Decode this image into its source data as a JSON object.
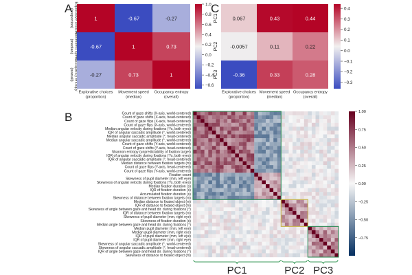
{
  "panels": {
    "A": {
      "letter": "A",
      "row_labels": [
        "Explorative choices (proportion)",
        "Movement speed (median)",
        "Occupancy entropy (overall)"
      ],
      "col_labels": [
        "Explorative choices (proportion)",
        "Movement speed (median)",
        "Occupancy entropy (overall)"
      ],
      "values": [
        [
          1,
          -0.67,
          -0.27
        ],
        [
          -0.67,
          1,
          0.73
        ],
        [
          -0.27,
          0.73,
          1
        ]
      ],
      "value_labels": [
        [
          "1",
          "-0.67",
          "-0.27"
        ],
        [
          "-0.67",
          "1",
          "0.73"
        ],
        [
          "-0.27",
          "0.73",
          "1"
        ]
      ],
      "colorbar": {
        "min": -0.67,
        "max": 1.0,
        "ticks": [
          1.0,
          0.8,
          0.6,
          0.4,
          0.2,
          0.0,
          -0.2,
          -0.4,
          -0.6
        ],
        "tick_labels": [
          "1.0",
          "0.8",
          "0.6",
          "0.4",
          "0.2",
          "0.0",
          "−0.2",
          "−0.4",
          "−0.6"
        ]
      }
    },
    "C": {
      "letter": "C",
      "row_labels": [
        "PC1",
        "PC2",
        "PC3"
      ],
      "col_labels": [
        "Explorative choices (proportion)",
        "Movement speed (median)",
        "Occupancy entropy (overall)"
      ],
      "values": [
        [
          0.067,
          0.43,
          0.44
        ],
        [
          -0.0057,
          0.11,
          0.22
        ],
        [
          -0.36,
          0.33,
          0.28
        ]
      ],
      "value_labels": [
        [
          "0.067",
          "0.43",
          "0.44"
        ],
        [
          "-0.0057",
          "0.11",
          "0.22"
        ],
        [
          "-0.36",
          "0.33",
          "0.28"
        ]
      ],
      "colorbar": {
        "min": -0.36,
        "max": 0.44,
        "ticks": [
          0.4,
          0.3,
          0.2,
          0.1,
          0.0,
          -0.1,
          -0.2,
          -0.3
        ],
        "tick_labels": [
          "0.4",
          "0.3",
          "0.2",
          "0.1",
          "0.0",
          "−0.1",
          "−0.2",
          "−0.3"
        ]
      }
    },
    "B": {
      "letter": "B",
      "row_labels": [
        "Count of gaze shifts (X-axis, world-centered)",
        "Count of gaze shifts (X-axis, head-centered)",
        "Count of gaze flips (X-axis, head-centered)",
        "Count of gaze flips (X-axis, world-centered)",
        "Median angular velocity during fixations (°/s, both eyes)",
        "IQR of angular saccadic amplitude (°, world-centered)",
        "Median angular saccadic amplitude (°, head-centered)",
        "Median angular saccadic amplitude (°, world-centered)",
        "Count of gaze shifts (Y-axis, world-centered)",
        "Count of gaze shifts (Y-axis, head-centered)",
        "Shannon entropy (unpredictability of fixation target)",
        "IQR of angular velocity during fixations (°/s, both eyes)",
        "IQR of angular saccadic amplitude (°, head-centered)",
        "Median distance between fixation targets (m)",
        "Count of gaze flips (Y-axis, head-centered)",
        "Count of gaze flips (Y-axis, world-centered)",
        "Fixation count",
        "Skewness of pupil diameter (mm, left eye)",
        "Skewness of angular velocity during fixations (°/s, both eyes)",
        "Median fixation duration (s)",
        "IQR of fixation duration (s)",
        "Accumulated fixation duration (s)",
        "Skewness of distance between fixation targets (m)",
        "Median distance to fixated object (m)",
        "IQR of distance to fixated object (m)",
        "Skewness of angle between gaze and head dir. during fixations (°)",
        "IQR of distance between fixation targets (m)",
        "Skewness of pupil diameter (mm, right eye)",
        "Skewness of fixation duration (s)",
        "Median angle between gaze and head dir. during fixations (°)",
        "Median pupil diameter (mm, left eye)",
        "Median pupil diameter (mm, right eye)",
        "IQR of pupil diameter (mm, left eye)",
        "IQR of pupil diameter (mm, right eye)",
        "Skewness of angular saccadic amplitude (°, world-centered)",
        "Skewness of angular saccadic amplitude (°, head-centered)",
        "IQR of angle between gaze and head dir. during fixations (°)",
        "Skewness of distance to fixated object (m)"
      ],
      "groups": [
        {
          "label": "PC1",
          "start": 0,
          "end": 23
        },
        {
          "label": "PC2",
          "start": 23,
          "end": 30
        },
        {
          "label": "PC3",
          "start": 30,
          "end": 38
        }
      ],
      "colorbar": {
        "min": -1.0,
        "max": 1.0,
        "ticks": [
          1.0,
          0.75,
          0.5,
          0.25,
          0.0,
          -0.25,
          -0.5,
          -0.75
        ],
        "tick_labels": [
          "1.00",
          "0.75",
          "0.50",
          "0.25",
          "0.00",
          "−0.25",
          "−0.50",
          "−0.75"
        ]
      }
    }
  },
  "colors": {
    "neg": "#3b4cc0",
    "mid": "#f2f0ef",
    "pos": "#b40426",
    "b_neg": "#053061",
    "b_pos": "#67001f",
    "box": "#2e8b57",
    "box_pc2": "#c7b64a",
    "text": "#222222"
  },
  "chart_data": [
    {
      "type": "heatmap",
      "title": "A",
      "x": [
        "Explorative choices (proportion)",
        "Movement speed (median)",
        "Occupancy entropy (overall)"
      ],
      "y": [
        "Explorative choices (proportion)",
        "Movement speed (median)",
        "Occupancy entropy (overall)"
      ],
      "values": [
        [
          1,
          -0.67,
          -0.27
        ],
        [
          -0.67,
          1,
          0.73
        ],
        [
          -0.27,
          0.73,
          1
        ]
      ]
    },
    {
      "type": "heatmap",
      "title": "C",
      "x": [
        "Explorative choices (proportion)",
        "Movement speed (median)",
        "Occupancy entropy (overall)"
      ],
      "y": [
        "PC1",
        "PC2",
        "PC3"
      ],
      "values": [
        [
          0.067,
          0.43,
          0.44
        ],
        [
          -0.0057,
          0.11,
          0.22
        ],
        [
          -0.36,
          0.33,
          0.28
        ]
      ]
    },
    {
      "type": "heatmap",
      "title": "B",
      "x_groups": [
        "PC1",
        "PC2",
        "PC3"
      ],
      "block_means": {
        "PC1": 0.45,
        "PC2": 0.2,
        "PC3": 0.25
      },
      "anticorrelated_rows": [
        16,
        17,
        18,
        19,
        20,
        21,
        22
      ],
      "colorbar_range": [
        -1.0,
        1.0
      ]
    }
  ]
}
